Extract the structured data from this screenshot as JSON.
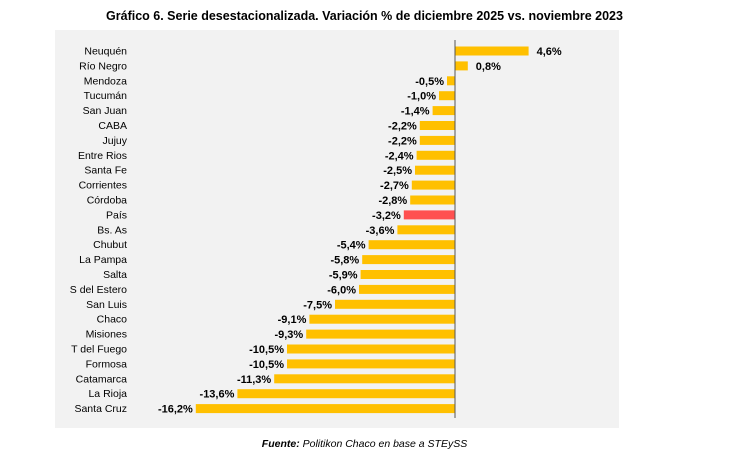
{
  "chart_data": {
    "type": "bar",
    "orientation": "horizontal",
    "title": "Gráfico 6. Serie desestacionalizada. Variación % de diciembre 2025 vs. noviembre 2023",
    "categories": [
      "Neuquén",
      "Río Negro",
      "Mendoza",
      "Tucumán",
      "San Juan",
      "CABA",
      "Jujuy",
      "Entre Rios",
      "Santa Fe",
      "Corrientes",
      "Córdoba",
      "País",
      "Bs. As",
      "Chubut",
      "La Pampa",
      "Salta",
      "S del Estero",
      "San Luis",
      "Chaco",
      "Misiones",
      "T del Fuego",
      "Formosa",
      "Catamarca",
      "La Rioja",
      "Santa Cruz"
    ],
    "values": [
      4.6,
      0.8,
      -0.5,
      -1.0,
      -1.4,
      -2.2,
      -2.2,
      -2.4,
      -2.5,
      -2.7,
      -2.8,
      -3.2,
      -3.6,
      -5.4,
      -5.8,
      -5.9,
      -6.0,
      -7.5,
      -9.1,
      -9.3,
      -10.5,
      -10.5,
      -11.3,
      -13.6,
      -16.2
    ],
    "value_labels": [
      "4,6%",
      "0,8%",
      "-0,5%",
      "-1,0%",
      "-1,4%",
      "-2,2%",
      "-2,2%",
      "-2,4%",
      "-2,5%",
      "-2,7%",
      "-2,8%",
      "-3,2%",
      "-3,6%",
      "-5,4%",
      "-5,8%",
      "-5,9%",
      "-6,0%",
      "-7,5%",
      "-9,1%",
      "-9,3%",
      "-10,5%",
      "-10,5%",
      "-11,3%",
      "-13,6%",
      "-16,2%"
    ],
    "highlight_category": "País",
    "colors": {
      "bar": "#ffc000",
      "highlight": "#ff5050",
      "background": "#f2f2f2",
      "axis": "#555555"
    },
    "xlim": [
      -16.2,
      4.6
    ],
    "grid": false,
    "legend": false
  },
  "source": {
    "label": "Fuente:",
    "text": " Politikon Chaco en base a STEySS"
  }
}
